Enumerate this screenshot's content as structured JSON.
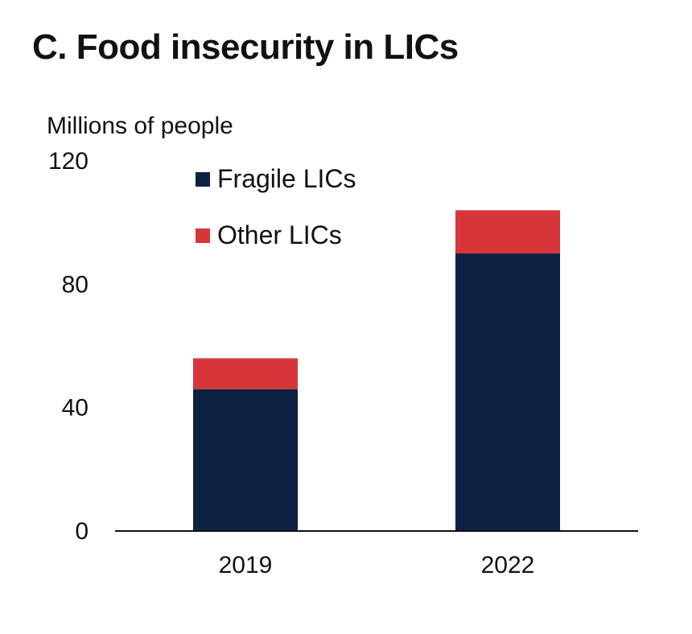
{
  "chart_data": {
    "type": "bar",
    "stacked": true,
    "title": "C. Food insecurity in LICs",
    "ylabel": "Millions of people",
    "xlabel": "",
    "categories": [
      "2019",
      "2022"
    ],
    "series": [
      {
        "name": "Fragile LICs",
        "values": [
          46,
          90
        ],
        "color": "#0d2142"
      },
      {
        "name": "Other LICs",
        "values": [
          10,
          14
        ],
        "color": "#d6363a"
      }
    ],
    "ylim": [
      0,
      120
    ],
    "yticks": [
      0,
      40,
      80,
      120
    ],
    "grid": false,
    "legend_position": "top-left"
  }
}
